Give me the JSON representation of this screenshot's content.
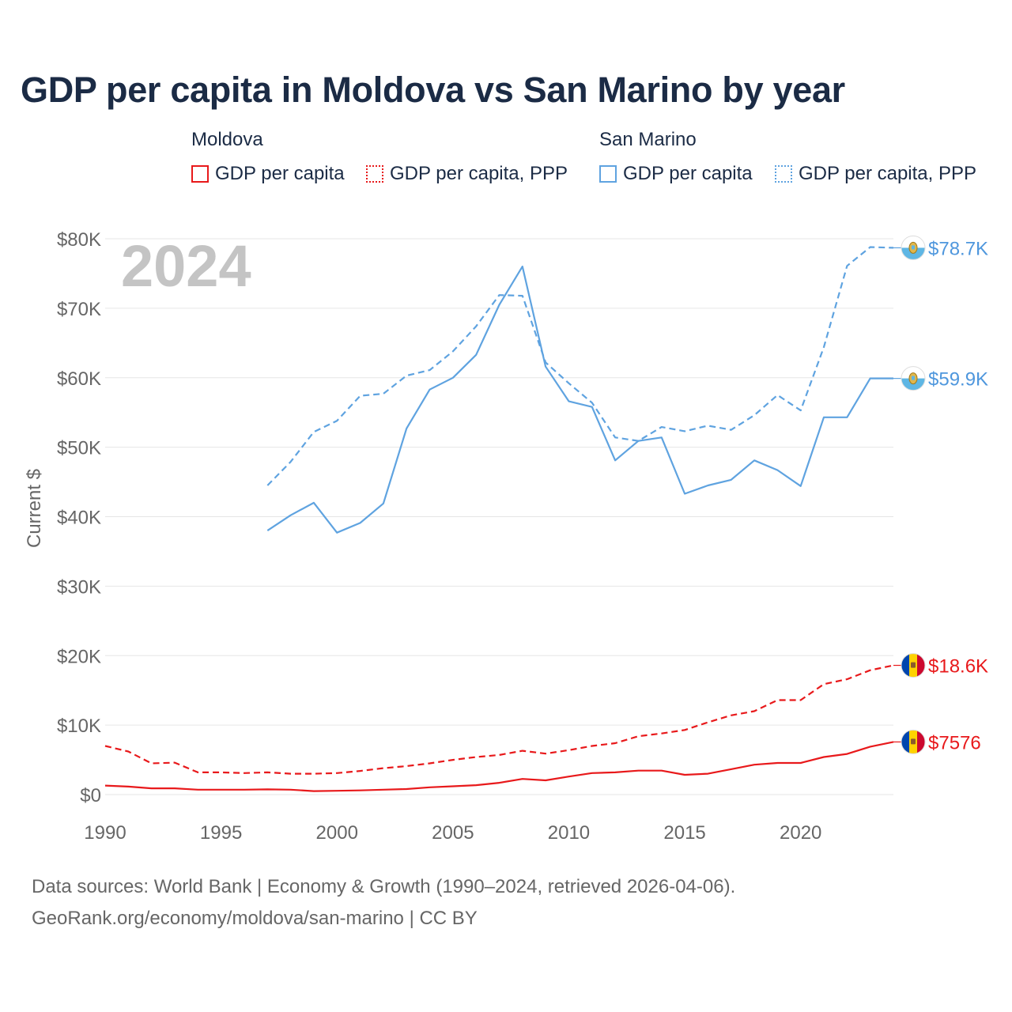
{
  "chart_data": {
    "type": "line",
    "title": "GDP per capita in Moldova vs San Marino by year",
    "ylabel": "Current $",
    "xlabel": "",
    "year_label": "2024",
    "xlim": [
      1990,
      2024
    ],
    "ylim": [
      0,
      80000
    ],
    "x_ticks": [
      {
        "value": 1990,
        "label": "1990"
      },
      {
        "value": 1995,
        "label": "1995"
      },
      {
        "value": 2000,
        "label": "2000"
      },
      {
        "value": 2005,
        "label": "2005"
      },
      {
        "value": 2010,
        "label": "2010"
      },
      {
        "value": 2015,
        "label": "2015"
      },
      {
        "value": 2020,
        "label": "2020"
      }
    ],
    "y_ticks": [
      {
        "value": 0,
        "label": "$0"
      },
      {
        "value": 10000,
        "label": "$10K"
      },
      {
        "value": 20000,
        "label": "$20K"
      },
      {
        "value": 30000,
        "label": "$30K"
      },
      {
        "value": 40000,
        "label": "$40K"
      },
      {
        "value": 50000,
        "label": "$50K"
      },
      {
        "value": 60000,
        "label": "$60K"
      },
      {
        "value": 70000,
        "label": "$70K"
      },
      {
        "value": 80000,
        "label": "$80K"
      }
    ],
    "legend": {
      "groups": [
        {
          "country": "Moldova",
          "items": [
            {
              "label": "GDP per capita",
              "style": "solid",
              "color": "#e8191b"
            },
            {
              "label": "GDP per capita, PPP",
              "style": "dotted",
              "color": "#e8191b"
            }
          ]
        },
        {
          "country": "San Marino",
          "items": [
            {
              "label": "GDP per capita",
              "style": "solid",
              "color": "#5fa3e0"
            },
            {
              "label": "GDP per capita, PPP",
              "style": "dotted",
              "color": "#5fa3e0"
            }
          ]
        }
      ]
    },
    "series": [
      {
        "name": "San Marino GDP per capita, PPP",
        "country": "San Marino",
        "dashed": true,
        "color": "#5fa3e0",
        "flag": "san-marino",
        "end_label": "$78.7K",
        "x": [
          1997,
          1998,
          1999,
          2000,
          2001,
          2002,
          2003,
          2004,
          2005,
          2006,
          2007,
          2008,
          2009,
          2010,
          2011,
          2012,
          2013,
          2014,
          2015,
          2016,
          2017,
          2018,
          2019,
          2020,
          2021,
          2022,
          2023,
          2024
        ],
        "values": [
          44500,
          47900,
          52200,
          53800,
          57400,
          57700,
          60300,
          61100,
          63800,
          67400,
          71900,
          71800,
          62200,
          59200,
          56400,
          51400,
          50900,
          52900,
          52300,
          53100,
          52500,
          54600,
          57500,
          55300,
          64400,
          76100,
          78800,
          78700
        ]
      },
      {
        "name": "San Marino GDP per capita",
        "country": "San Marino",
        "dashed": false,
        "color": "#5fa3e0",
        "flag": "san-marino",
        "end_label": "$59.9K",
        "x": [
          1997,
          1998,
          1999,
          2000,
          2001,
          2002,
          2003,
          2004,
          2005,
          2006,
          2007,
          2008,
          2009,
          2010,
          2011,
          2012,
          2013,
          2014,
          2015,
          2016,
          2017,
          2018,
          2019,
          2020,
          2021,
          2022,
          2023,
          2024
        ],
        "values": [
          38000,
          40200,
          42000,
          37700,
          39100,
          41900,
          52700,
          58300,
          60000,
          63300,
          70500,
          76000,
          61600,
          56600,
          55800,
          48100,
          50900,
          51400,
          43300,
          44500,
          45300,
          48100,
          46700,
          44400,
          54300,
          54300,
          59900,
          59900
        ]
      },
      {
        "name": "Moldova GDP per capita, PPP",
        "country": "Moldova",
        "dashed": true,
        "color": "#e8191b",
        "flag": "moldova",
        "end_label": "$18.6K",
        "x": [
          1990,
          1991,
          1992,
          1993,
          1994,
          1995,
          1996,
          1997,
          1998,
          1999,
          2000,
          2001,
          2002,
          2003,
          2004,
          2005,
          2006,
          2007,
          2008,
          2009,
          2010,
          2011,
          2012,
          2013,
          2014,
          2015,
          2016,
          2017,
          2018,
          2019,
          2020,
          2021,
          2022,
          2023,
          2024
        ],
        "values": [
          7000,
          6200,
          4500,
          4600,
          3200,
          3200,
          3100,
          3200,
          3000,
          3000,
          3100,
          3400,
          3800,
          4100,
          4500,
          5000,
          5400,
          5700,
          6300,
          5900,
          6400,
          7000,
          7400,
          8400,
          8800,
          9300,
          10400,
          11400,
          12000,
          13600,
          13600,
          15900,
          16600,
          17900,
          18600
        ]
      },
      {
        "name": "Moldova GDP per capita",
        "country": "Moldova",
        "dashed": false,
        "color": "#e8191b",
        "flag": "moldova",
        "end_label": "$7576",
        "x": [
          1990,
          1991,
          1992,
          1993,
          1994,
          1995,
          1996,
          1997,
          1998,
          1999,
          2000,
          2001,
          2002,
          2003,
          2004,
          2005,
          2006,
          2007,
          2008,
          2009,
          2010,
          2011,
          2012,
          2013,
          2014,
          2015,
          2016,
          2017,
          2018,
          2019,
          2020,
          2021,
          2022,
          2023,
          2024
        ],
        "values": [
          1300,
          1150,
          900,
          900,
          700,
          700,
          700,
          750,
          700,
          500,
          550,
          600,
          700,
          800,
          1050,
          1200,
          1350,
          1700,
          2250,
          2050,
          2600,
          3100,
          3200,
          3450,
          3450,
          2850,
          3000,
          3650,
          4300,
          4550,
          4550,
          5400,
          5850,
          6900,
          7576
        ]
      }
    ]
  },
  "footer": {
    "sources": "Data sources: World Bank | Economy & Growth (1990–2024, retrieved 2026-04-06).",
    "attribution": "GeoRank.org/economy/moldova/san-marino | CC BY"
  }
}
